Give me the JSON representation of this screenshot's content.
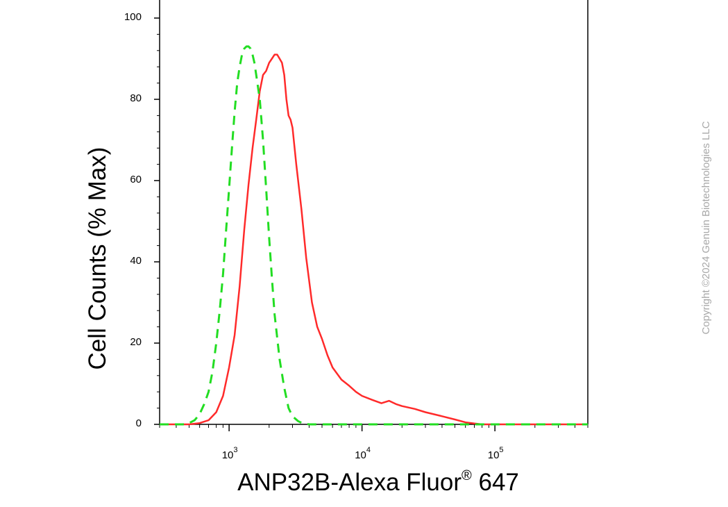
{
  "chart_data": {
    "type": "line",
    "xlabel_main": "ANP32B-Alexa Fluor",
    "xlabel_sup": "®",
    "xlabel_tail": " 647",
    "ylabel": "Cell Counts (% Max)",
    "x_scale": "log",
    "xlim": [
      300,
      500000
    ],
    "ylim": [
      0,
      105
    ],
    "y_ticks": [
      0,
      20,
      40,
      60,
      80,
      100
    ],
    "y_tick_labels": [
      "0",
      "20",
      "40",
      "60",
      "80",
      "100"
    ],
    "x_ticks": [
      {
        "value": 1000,
        "base": "10",
        "exp": "3"
      },
      {
        "value": 10000,
        "base": "10",
        "exp": "4"
      },
      {
        "value": 100000,
        "base": "10",
        "exp": "5"
      }
    ],
    "series": [
      {
        "color": "#ff2a2a",
        "style": "solid",
        "x": [
          300,
          500,
          600,
          700,
          800,
          900,
          1000,
          1100,
          1200,
          1300,
          1400,
          1500,
          1600,
          1700,
          1800,
          1900,
          2000,
          2100,
          2200,
          2300,
          2400,
          2500,
          2600,
          2700,
          2800,
          2900,
          3000,
          3200,
          3500,
          3800,
          4200,
          4600,
          5000,
          5500,
          6000,
          7000,
          8000,
          9000,
          10000,
          12000,
          14000,
          16000,
          18000,
          20000,
          25000,
          30000,
          40000,
          50000,
          60000,
          70000,
          80000,
          100000,
          200000,
          500000
        ],
        "y": [
          0,
          0,
          0.3,
          1,
          3,
          7,
          14,
          22,
          34,
          48,
          59,
          68,
          75,
          82,
          86,
          87,
          89,
          90,
          91,
          91,
          90,
          89,
          86,
          80,
          76,
          75,
          73,
          64,
          53,
          41,
          30,
          24,
          21,
          17,
          14,
          11,
          9.5,
          8,
          7,
          6,
          5.2,
          5.8,
          5,
          4.5,
          3.8,
          3,
          2,
          1.2,
          0.5,
          0.2,
          0,
          0,
          0,
          0
        ]
      },
      {
        "color": "#22dd22",
        "style": "dashed",
        "x": [
          300,
          450,
          500,
          550,
          600,
          650,
          700,
          750,
          800,
          850,
          900,
          950,
          1000,
          1050,
          1100,
          1150,
          1200,
          1250,
          1300,
          1350,
          1400,
          1450,
          1500,
          1550,
          1600,
          1700,
          1800,
          1900,
          2000,
          2100,
          2200,
          2400,
          2600,
          2800,
          3000,
          3300,
          3600,
          4000,
          5000,
          500000
        ],
        "y": [
          0,
          0,
          0.3,
          1,
          2.5,
          5,
          8,
          13,
          20,
          28,
          37,
          48,
          58,
          68,
          77,
          84,
          88,
          91,
          92.5,
          93,
          93,
          92.5,
          91,
          89,
          86,
          80,
          70,
          58,
          46,
          36,
          27,
          16,
          9,
          4,
          2,
          0.8,
          0.2,
          0,
          0,
          0
        ]
      }
    ]
  },
  "watermark": "Copyright ©2024 Genuin Biotechnologies LLC"
}
